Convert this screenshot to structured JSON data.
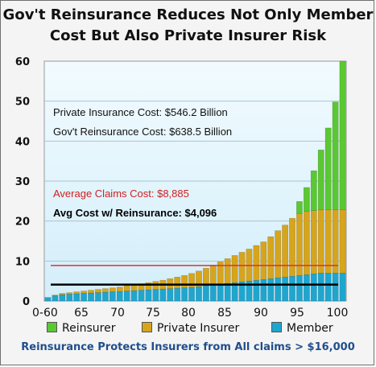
{
  "chart_data": {
    "type": "bar",
    "title": "Gov't Reinsurance Reduces Not Only Member Cost But Also Private Insurer Risk",
    "ylim": [
      0,
      60
    ],
    "yticks": [
      0,
      10,
      20,
      30,
      40,
      50,
      60
    ],
    "xticks": [
      "0-60",
      "65",
      "70",
      "75",
      "80",
      "85",
      "90",
      "95",
      "100"
    ],
    "x": [
      0,
      1,
      2,
      3,
      4,
      5,
      6,
      7,
      8,
      9,
      10,
      11,
      12,
      13,
      14,
      15,
      16,
      17,
      18,
      19,
      20,
      21,
      22,
      23,
      24,
      25,
      26,
      27,
      28,
      29,
      30,
      31,
      32,
      33,
      34,
      35,
      36,
      37,
      38,
      39,
      40,
      41
    ],
    "series": [
      {
        "name": "Member",
        "color": "#1fa6cf",
        "values": [
          0.9,
          1.3,
          1.6,
          1.7,
          1.8,
          1.9,
          2.0,
          2.1,
          2.2,
          2.3,
          2.4,
          2.5,
          2.6,
          2.7,
          2.8,
          2.9,
          3.0,
          3.1,
          3.2,
          3.3,
          3.4,
          3.6,
          3.8,
          4.0,
          4.2,
          4.4,
          4.6,
          4.8,
          5.0,
          5.2,
          5.4,
          5.6,
          5.8,
          6.0,
          6.2,
          6.4,
          6.6,
          6.8,
          7.0,
          7.0,
          7.0,
          7.0
        ]
      },
      {
        "name": "Private Insurer",
        "color": "#d6a51c",
        "values": [
          0,
          0.2,
          0.3,
          0.4,
          0.5,
          0.6,
          0.7,
          0.8,
          0.9,
          1.0,
          1.1,
          1.3,
          1.5,
          1.6,
          1.8,
          2.0,
          2.2,
          2.5,
          2.8,
          3.1,
          3.5,
          3.9,
          4.4,
          5.0,
          5.6,
          6.2,
          6.8,
          7.4,
          8.0,
          8.7,
          9.4,
          10.5,
          11.8,
          13.0,
          14.5,
          15.5,
          15.8,
          15.8,
          15.8,
          15.8,
          15.8,
          15.8
        ]
      },
      {
        "name": "Reinsurer",
        "color": "#5ac832",
        "values": [
          0,
          0,
          0,
          0,
          0,
          0,
          0,
          0,
          0,
          0,
          0,
          0,
          0,
          0,
          0,
          0,
          0,
          0,
          0,
          0,
          0,
          0,
          0,
          0,
          0,
          0,
          0,
          0,
          0,
          0,
          0,
          0,
          0,
          0,
          0,
          3.0,
          6.0,
          10.0,
          15.0,
          20.5,
          27.0,
          37.5
        ]
      }
    ],
    "lines": [
      {
        "label": "Average Claims Cost: $8,885",
        "value": 8.885,
        "color": "#e03030"
      },
      {
        "label": "Avg Cost w/ Reinsurance: $4,096",
        "value": 4.096,
        "color": "#000000"
      }
    ],
    "annotations": [
      "Private Insurance Cost: $546.2 Billion",
      "Gov't Reinsurance Cost: $638.5 Billion"
    ],
    "legend": [
      "Reinsurer",
      "Private Insurer",
      "Member"
    ],
    "footer": "Reinsurance Protects Insurers from All claims > $16,000"
  }
}
